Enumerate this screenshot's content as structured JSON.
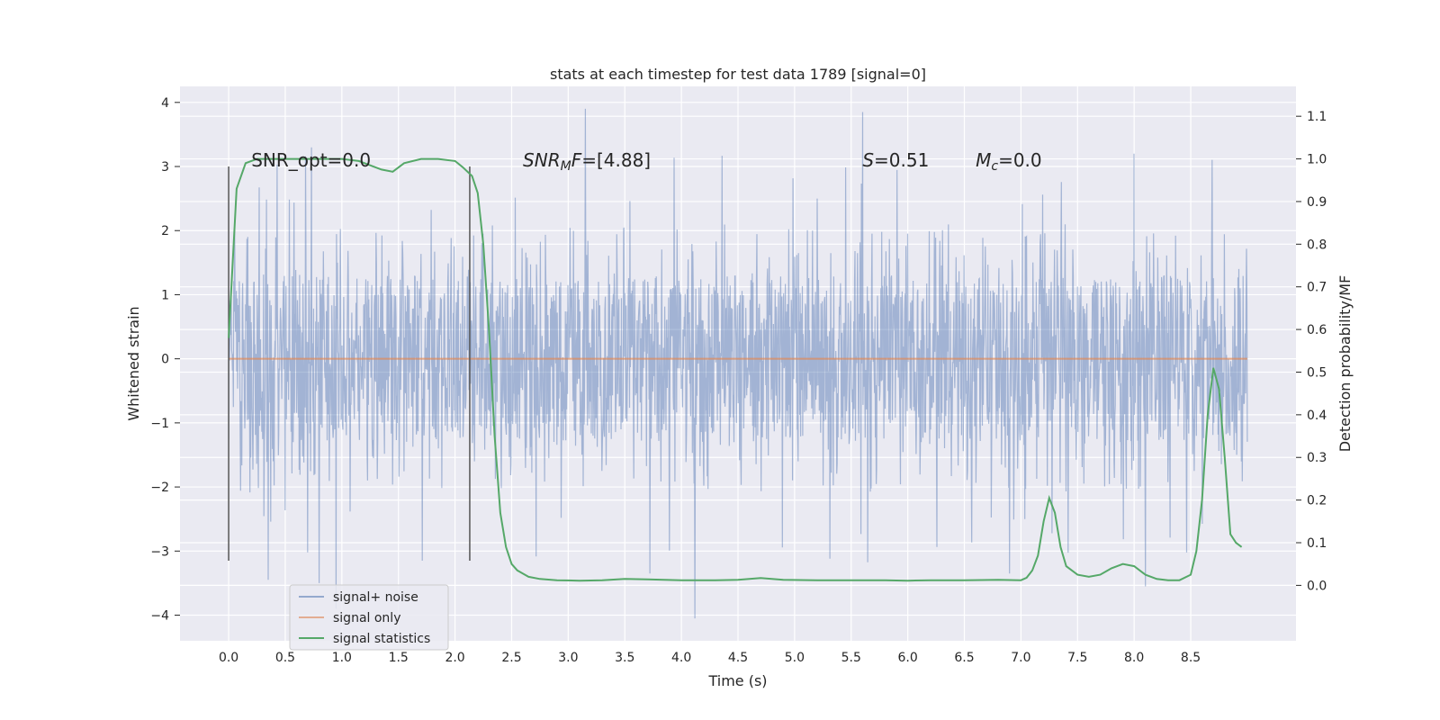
{
  "chart_data": {
    "type": "line",
    "title": "stats at each timestep for test data 1789 [signal=0]",
    "xlabel": "Time (s)",
    "ylabel": "Whitened strain",
    "ylabel_right": "Detection probability/MF",
    "xlim": [
      -0.43,
      9.43
    ],
    "ylim": [
      -4.4,
      4.25
    ],
    "ylim_right": [
      -0.13,
      1.17
    ],
    "x_ticks": [
      "0.0",
      "0.5",
      "1.0",
      "1.5",
      "2.0",
      "2.5",
      "3.0",
      "3.5",
      "4.0",
      "4.5",
      "5.0",
      "5.5",
      "6.0",
      "6.5",
      "7.0",
      "7.5",
      "8.0",
      "8.5"
    ],
    "y_ticks": [
      "4",
      "3",
      "2",
      "1",
      "0",
      "−1",
      "−2",
      "−3",
      "−4"
    ],
    "y_right_ticks": [
      "0.0",
      "0.1",
      "0.2",
      "0.3",
      "0.4",
      "0.5",
      "0.6",
      "0.7",
      "0.8",
      "0.9",
      "1.0",
      "1.1"
    ],
    "grid": true,
    "legend_position": "lower-left",
    "colors": {
      "plot_bg": "#eaeaf2",
      "noise": "#4c72b0",
      "signal": "#dd8452",
      "stats": "#55a868",
      "vline": "#555555"
    },
    "series": [
      {
        "name": "signal+ noise",
        "noise_x_range": [
          0.0,
          9.0
        ],
        "noise_envelope_y": [
          -2.2,
          2.2
        ],
        "noise_spike_extremes": [
          {
            "x": 0.35,
            "y": -3.45
          },
          {
            "x": 0.73,
            "y": 3.3
          },
          {
            "x": 0.8,
            "y": -3.5
          },
          {
            "x": 0.95,
            "y": -3.9
          },
          {
            "x": 3.15,
            "y": 3.9
          },
          {
            "x": 3.72,
            "y": -3.35
          },
          {
            "x": 4.12,
            "y": -4.05
          },
          {
            "x": 5.6,
            "y": 3.85
          },
          {
            "x": 6.9,
            "y": -3.35
          },
          {
            "x": 8.1,
            "y": -3.55
          },
          {
            "x": 8.0,
            "y": 3.2
          }
        ]
      },
      {
        "name": "signal only",
        "x": [
          0.0,
          9.0
        ],
        "y": [
          0.0,
          0.0
        ]
      },
      {
        "name": "signal statistics",
        "x": [
          0.0,
          0.07,
          0.15,
          0.25,
          0.5,
          0.75,
          1.0,
          1.15,
          1.25,
          1.35,
          1.45,
          1.55,
          1.7,
          1.85,
          2.0,
          2.07,
          2.15,
          2.2,
          2.25,
          2.3,
          2.35,
          2.4,
          2.45,
          2.5,
          2.55,
          2.65,
          2.75,
          2.9,
          3.1,
          3.3,
          3.5,
          3.7,
          4.0,
          4.3,
          4.5,
          4.7,
          4.9,
          5.2,
          5.5,
          5.8,
          6.0,
          6.2,
          6.5,
          6.8,
          7.0,
          7.05,
          7.1,
          7.15,
          7.2,
          7.25,
          7.3,
          7.35,
          7.4,
          7.5,
          7.6,
          7.7,
          7.8,
          7.9,
          8.0,
          8.1,
          8.2,
          8.3,
          8.4,
          8.5,
          8.55,
          8.6,
          8.65,
          8.7,
          8.75,
          8.8,
          8.85,
          8.9,
          8.95
        ],
        "y": [
          0.58,
          0.93,
          0.99,
          1.0,
          1.0,
          1.0,
          1.0,
          0.995,
          0.985,
          0.975,
          0.97,
          0.99,
          1.0,
          1.0,
          0.995,
          0.98,
          0.96,
          0.92,
          0.8,
          0.6,
          0.35,
          0.17,
          0.09,
          0.05,
          0.035,
          0.02,
          0.015,
          0.012,
          0.011,
          0.012,
          0.015,
          0.014,
          0.012,
          0.012,
          0.013,
          0.017,
          0.013,
          0.012,
          0.012,
          0.012,
          0.011,
          0.012,
          0.012,
          0.013,
          0.012,
          0.018,
          0.035,
          0.07,
          0.15,
          0.205,
          0.17,
          0.09,
          0.045,
          0.025,
          0.02,
          0.025,
          0.04,
          0.05,
          0.045,
          0.025,
          0.015,
          0.012,
          0.012,
          0.025,
          0.08,
          0.2,
          0.4,
          0.51,
          0.46,
          0.3,
          0.12,
          0.1,
          0.09
        ]
      }
    ],
    "vlines": [
      {
        "x": 0.0,
        "y_range": [
          -3.15,
          3.0
        ]
      },
      {
        "x": 2.13,
        "y_range": [
          -3.15,
          3.0
        ]
      }
    ],
    "annotations": [
      {
        "x": 0.2,
        "y": 3.1,
        "text": "SNR_opt=0.0",
        "style": "normal"
      },
      {
        "x": 2.6,
        "y": 3.1,
        "text_parts": [
          {
            "t": "SNR",
            "i": true
          },
          {
            "t": "M",
            "i": true,
            "sub": true
          },
          {
            "t": "F",
            "i": true
          },
          {
            "t": "=[4.88]",
            "i": false
          }
        ]
      },
      {
        "x": 5.6,
        "y": 3.1,
        "text_parts": [
          {
            "t": "S",
            "i": true
          },
          {
            "t": "=0.51",
            "i": false
          }
        ]
      },
      {
        "x": 6.6,
        "y": 3.1,
        "text_parts": [
          {
            "t": "M",
            "i": true
          },
          {
            "t": "c",
            "i": true,
            "sub": true
          },
          {
            "t": "=0.0",
            "i": false
          }
        ]
      }
    ]
  }
}
